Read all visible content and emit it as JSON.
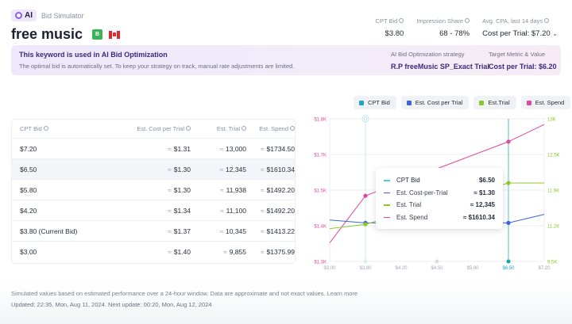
{
  "header": {
    "ai_label": "AI",
    "breadcrumb": "Bid Simulator",
    "title": "free music",
    "badge": "B",
    "country_flag": "canada-flag-icon"
  },
  "metrics": [
    {
      "label": "CPT Bid",
      "value": "$3.80"
    },
    {
      "label": "Impression Share",
      "value": "68 - 78%"
    },
    {
      "label": "Avg. CPA, last 14 days",
      "value": "Cost per Trial: $7.20"
    }
  ],
  "banner": {
    "heading": "This keyword is used in AI Bid Optimization",
    "text": "The optimal bid is automatically set. To keep your strategy on track, manual rate adjustments are limited.",
    "strategy_label": "AI Bid Optimization strategy",
    "strategy_value": "R.P freeMusic SP_Exact Trial",
    "target_label": "Target Metric & Value",
    "target_value": "Cost per Trial: $6.20"
  },
  "table": {
    "headers": [
      "CPT Bid",
      "Est. Cost per Trial",
      "Est. Trial",
      "Est. Spend"
    ],
    "approx_symbol": "≈",
    "rows": [
      {
        "bid": "$7.20",
        "cpt": "$1.31",
        "trial": "13,000",
        "spend": "$1734.50"
      },
      {
        "bid": "$6.50",
        "cpt": "$1.30",
        "trial": "12,345",
        "spend": "$1610.34"
      },
      {
        "bid": "$5.80",
        "cpt": "$1.30",
        "trial": "11,938",
        "spend": "$1492.20"
      },
      {
        "bid": "$4.20",
        "cpt": "$1.34",
        "trial": "11,100",
        "spend": "$1492.20"
      },
      {
        "bid": "$3.80 (Current Bid)",
        "cpt": "$1.37",
        "trial": "10,345",
        "spend": "$1413.22"
      },
      {
        "bid": "$3.00",
        "cpt": "$1.40",
        "trial": "9,855",
        "spend": "$1375.99"
      }
    ]
  },
  "legend": [
    {
      "label": "CPT Bid",
      "color": "#1ea7c4"
    },
    {
      "label": "Est. Cost per Trial",
      "color": "#3d63dd"
    },
    {
      "label": "Est.Trial",
      "color": "#8ac926"
    },
    {
      "label": "Est. Spend",
      "color": "#e0489f"
    }
  ],
  "tooltip": {
    "rows": [
      {
        "name": "CPT Bid",
        "value": "$6.50",
        "color": "#5cc8d8"
      },
      {
        "name": "Est. Cost-per-Trial",
        "value": "≈ $1.30",
        "color": "#3d63dd"
      },
      {
        "name": "Est. Trial",
        "value": "≈ 12,345",
        "color": "#8ac926"
      },
      {
        "name": "Est. Spend",
        "value": "≈ $1610.34",
        "color": "#e0489f"
      }
    ]
  },
  "chart_data": {
    "type": "line",
    "x": [
      "$3.00",
      "$3.80",
      "$4.20",
      "$4.50",
      "$5.80",
      "$6.50",
      "$7.20"
    ],
    "highlight_x": "$6.50",
    "current_x": "$3.80",
    "left_axis": {
      "ticks": [
        "$1.3K",
        "$1.4K",
        "$1.5K",
        "$1.7K",
        "$1.8K"
      ],
      "color": "#e0489f"
    },
    "right_axis": {
      "ticks": [
        "9.5K",
        "11.2K",
        "11.9K",
        "12.5K",
        "13K"
      ],
      "color": "#8ac926"
    },
    "series": [
      {
        "name": "Est. Spend",
        "color": "#e0489f",
        "values_level": [
          0.13,
          0.46,
          null,
          null,
          null,
          0.84,
          0.96
        ]
      },
      {
        "name": "Est. Cost per Trial",
        "color": "#3d63dd",
        "values_level": [
          0.29,
          0.27,
          null,
          null,
          null,
          0.27,
          0.33
        ]
      },
      {
        "name": "Est. Trial",
        "color": "#8ac926",
        "values_level": [
          0.23,
          0.26,
          null,
          null,
          null,
          0.55,
          0.55
        ]
      }
    ],
    "grid": true
  },
  "footer": {
    "disclaimer": "Simulated values based on estimated performance over a 24-hour window. Data are approximate and not exact values.",
    "learn_more": "Learn more",
    "updated": "Updated: 22:35, Mon, Aug 11, 2024.  Next update: 00:20, Mon, Aug 12, 2024"
  }
}
